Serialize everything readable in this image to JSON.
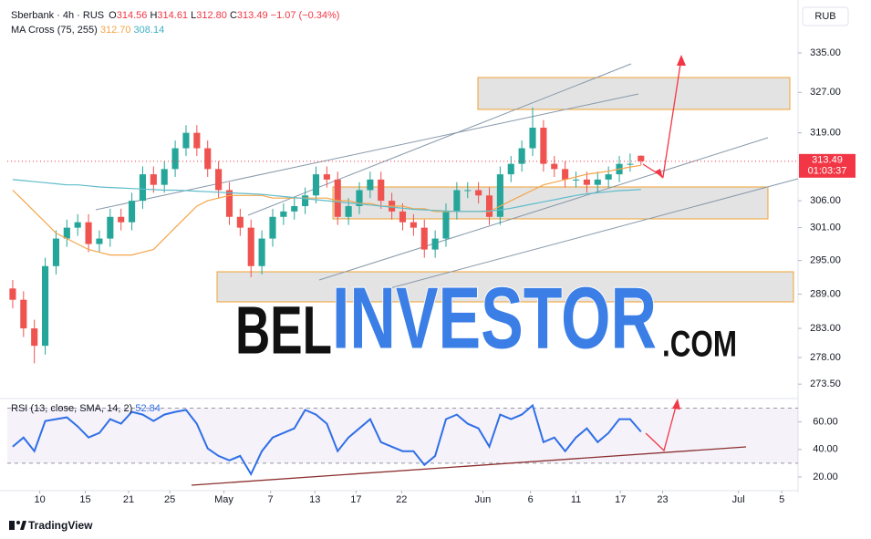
{
  "header": {
    "symbol": "Sberbank · 4h · RUS",
    "ohlc": [
      {
        "key": "O",
        "value": "314.56"
      },
      {
        "key": "H",
        "value": "314.61"
      },
      {
        "key": "L",
        "value": "312.80"
      },
      {
        "key": "C",
        "value": "313.49"
      }
    ],
    "change": "−1.07 (−0.34%)",
    "currency": "RUB"
  },
  "chart_data": [
    {
      "type": "candlestick",
      "log_scale": true,
      "up_color": "#26a69a",
      "down_color": "#ef5350",
      "xlim": [
        -0.5,
        72.5
      ],
      "ylim": [
        271.4,
        344.1
      ],
      "yticks": [
        {
          "value": 335,
          "label": "335.00"
        },
        {
          "value": 327,
          "label": "327.00"
        },
        {
          "value": 319,
          "label": "319.00"
        },
        {
          "value": 306,
          "label": "306.00"
        },
        {
          "value": 301,
          "label": "301.00"
        },
        {
          "value": 295,
          "label": "295.00"
        },
        {
          "value": 289,
          "label": "289.00"
        },
        {
          "value": 283,
          "label": "283.00"
        },
        {
          "value": 278,
          "label": "278.00"
        },
        {
          "value": 273.5,
          "label": "273.50"
        }
      ],
      "open": [
        290,
        288,
        283,
        280,
        294,
        299,
        301,
        302,
        298,
        299,
        303,
        302,
        306,
        311,
        309,
        312,
        316,
        319,
        316,
        312,
        308,
        303,
        301,
        294,
        299,
        303,
        304,
        305,
        307,
        311,
        310,
        303,
        305,
        308,
        310,
        306,
        304,
        302,
        301,
        297,
        299,
        304,
        308,
        308,
        307,
        303,
        311,
        313,
        316,
        320,
        313,
        312,
        310,
        310,
        309,
        310,
        311,
        313,
        314.56
      ],
      "high": [
        291.5,
        289.5,
        284.5,
        295.5,
        300.5,
        302.5,
        303.5,
        303.5,
        300.5,
        304.5,
        304.5,
        307.5,
        312.5,
        312.5,
        313.5,
        317.5,
        320.5,
        320.5,
        317.5,
        313.5,
        309.5,
        304.5,
        302.5,
        300.5,
        304.5,
        305.5,
        306.5,
        308.5,
        312.5,
        312.5,
        311.5,
        306.5,
        309.5,
        311.5,
        311.5,
        307.5,
        305.5,
        303.5,
        302.5,
        300.5,
        305.5,
        309.5,
        309.5,
        309.5,
        308.5,
        312.5,
        314.5,
        317.5,
        324,
        321.5,
        314.5,
        313.5,
        311.5,
        311.5,
        311.5,
        312.5,
        314.5,
        315,
        314.61
      ],
      "low": [
        286.5,
        281.5,
        277,
        278.5,
        292.5,
        297.5,
        299.5,
        296.5,
        296.5,
        297.5,
        300.5,
        300.5,
        304.5,
        307.5,
        307.5,
        310.5,
        314.5,
        314.5,
        310.5,
        306.5,
        301.5,
        299.5,
        292,
        292.5,
        297.5,
        301.5,
        302.5,
        303.5,
        305.5,
        308.5,
        301.5,
        301.5,
        303.5,
        306.5,
        304.5,
        302.5,
        300.5,
        299.5,
        295.5,
        295.5,
        297.5,
        302.5,
        306.5,
        305.5,
        301.5,
        301.5,
        309.5,
        311.5,
        314.5,
        311.5,
        310.5,
        308.5,
        308.5,
        307.5,
        307.5,
        308.5,
        309.5,
        311.5,
        312.8
      ],
      "close": [
        288,
        283,
        280,
        294,
        299,
        301,
        302,
        298,
        299,
        303,
        302,
        306,
        311,
        309,
        312,
        316,
        319,
        316,
        312,
        308,
        303,
        301,
        294,
        299,
        303,
        304,
        305,
        307,
        311,
        310,
        303,
        305,
        308,
        310,
        306,
        304,
        302,
        301,
        297,
        299,
        304,
        308,
        308,
        307,
        303,
        311,
        313,
        316,
        320,
        313,
        312,
        310,
        310,
        309,
        310,
        311,
        313,
        313,
        313.49
      ],
      "indicator": {
        "name": "MA Cross (75, 255)",
        "value_labels": [
          "312.70",
          "308.14"
        ]
      },
      "series": [
        {
          "color": "#f5a54a",
          "values": [
            308,
            306,
            304,
            302,
            300,
            299,
            298,
            297,
            296.5,
            296,
            296,
            296,
            296.5,
            297,
            299,
            301,
            303,
            305,
            306,
            306.5,
            307,
            307,
            307,
            307,
            306.5,
            306.5,
            306.5,
            306.5,
            306.5,
            306.5,
            306,
            306,
            305.5,
            305.5,
            305,
            305,
            305,
            304.5,
            304.5,
            304,
            304,
            304,
            304,
            304,
            304,
            305,
            306,
            307,
            308,
            309,
            309.5,
            310,
            310.5,
            311,
            311.3,
            311.6,
            312,
            312.4,
            312.7
          ]
        },
        {
          "color": "#5fbccb",
          "values": [
            310,
            309.8,
            309.6,
            309.4,
            309.2,
            309,
            309,
            308.8,
            308.6,
            308.5,
            308.4,
            308.3,
            308.2,
            308.1,
            308,
            308,
            307.9,
            307.8,
            307.7,
            307.6,
            307.5,
            307.4,
            307.3,
            307.2,
            307,
            306.8,
            306.6,
            306.4,
            306.2,
            306,
            305.8,
            305.6,
            305.4,
            305.2,
            305,
            304.8,
            304.6,
            304.4,
            304.3,
            304.2,
            304.1,
            304,
            304,
            304,
            304.1,
            304.3,
            304.6,
            305,
            305.4,
            305.8,
            306.2,
            306.6,
            307,
            307.3,
            307.5,
            307.7,
            307.9,
            308,
            308.14
          ]
        }
      ],
      "last_price": {
        "value": 313.49,
        "label": "313.49",
        "countdown": "01:03:37"
      }
    },
    {
      "type": "line",
      "title": "RSI (13, close, SMA, 14, 2)",
      "value_label": "52.84",
      "xlim": [
        -0.5,
        72.5
      ],
      "ylim": [
        12,
        75
      ],
      "yticks": [
        {
          "value": 60,
          "label": "60.00"
        },
        {
          "value": 40,
          "label": "40.00"
        },
        {
          "value": 20,
          "label": "20.00"
        }
      ],
      "bands": [
        30,
        70
      ],
      "xticks": [
        {
          "value": 2.5,
          "label": "10"
        },
        {
          "value": 6.7,
          "label": "15"
        },
        {
          "value": 10.7,
          "label": "21"
        },
        {
          "value": 14.5,
          "label": "25"
        },
        {
          "value": 19.5,
          "label": "May"
        },
        {
          "value": 23.8,
          "label": "7"
        },
        {
          "value": 27.9,
          "label": "13"
        },
        {
          "value": 31.7,
          "label": "17"
        },
        {
          "value": 35.9,
          "label": "22"
        },
        {
          "value": 43.4,
          "label": "Jun"
        },
        {
          "value": 47.8,
          "label": "6"
        },
        {
          "value": 52,
          "label": "11"
        },
        {
          "value": 56.1,
          "label": "17"
        },
        {
          "value": 60,
          "label": "23"
        },
        {
          "value": 67,
          "label": "Jul"
        },
        {
          "value": 71,
          "label": "5"
        }
      ],
      "series": [
        {
          "color": "#2f6fe6",
          "values": [
            42,
            48.7,
            38.7,
            60.7,
            62,
            63.3,
            56.7,
            48.7,
            52,
            62,
            58.7,
            67.3,
            65.3,
            60.7,
            65.3,
            67.3,
            68.7,
            58.7,
            40.7,
            35.3,
            32,
            35.3,
            22,
            38.7,
            48.7,
            52,
            55.3,
            68.7,
            65.3,
            58.7,
            38.7,
            48.7,
            55.3,
            62,
            45.3,
            42,
            38.7,
            38.7,
            28.7,
            35.3,
            62,
            65.3,
            58.7,
            55.3,
            42,
            65.3,
            62,
            65.3,
            72,
            45.3,
            48.7,
            38.7,
            48.7,
            55.3,
            45.3,
            52,
            62,
            62,
            52.84
          ]
        }
      ]
    }
  ],
  "watermark": {
    "parts": [
      "BEL",
      "INVESTOR",
      ".COM"
    ]
  },
  "footer": "TradingView"
}
